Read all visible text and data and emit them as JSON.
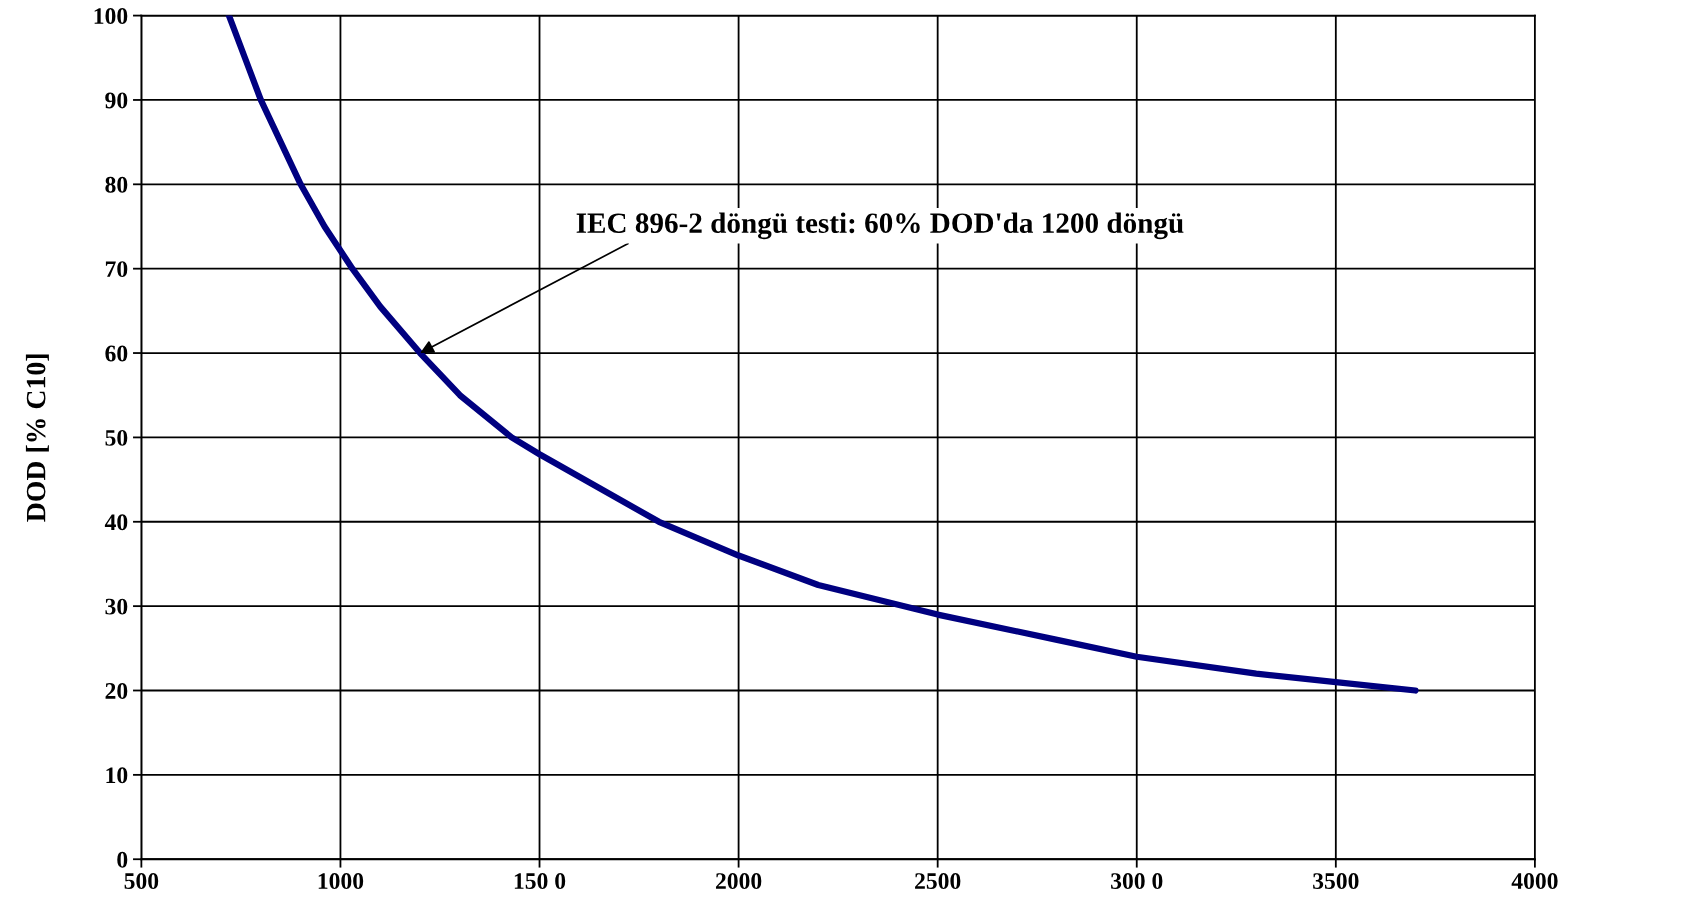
{
  "chart_data": {
    "type": "line",
    "ylabel": "DOD [% C10]",
    "x": [
      720,
      760,
      800,
      850,
      900,
      960,
      1030,
      1100,
      1200,
      1300,
      1430,
      1500,
      1650,
      1800,
      2000,
      2200,
      2500,
      2800,
      3000,
      3300,
      3500,
      3700
    ],
    "series": [
      {
        "color": "#000080",
        "values": [
          100,
          95,
          90,
          85,
          80,
          75,
          70,
          65.5,
          60,
          55,
          50,
          48,
          44,
          40,
          36,
          32.5,
          29,
          26,
          24,
          22,
          21,
          20
        ]
      }
    ],
    "xlim": [
      500,
      4000
    ],
    "xticks": [
      500,
      1000,
      {
        "value": 1500,
        "label": "150 0"
      },
      2000,
      2500,
      {
        "value": 3000,
        "label": "300 0"
      },
      3500,
      4000
    ],
    "ylim": [
      0,
      100
    ],
    "yticks": [
      0,
      10,
      20,
      30,
      40,
      50,
      60,
      70,
      80,
      90,
      100
    ],
    "grid": true,
    "marker": "none",
    "line_style": "solid",
    "annotations": [
      {
        "text": "IEC 896-2 döngü testi: 60% DOD'da 1200 döngü",
        "x": 1200,
        "y": 60
      }
    ]
  }
}
